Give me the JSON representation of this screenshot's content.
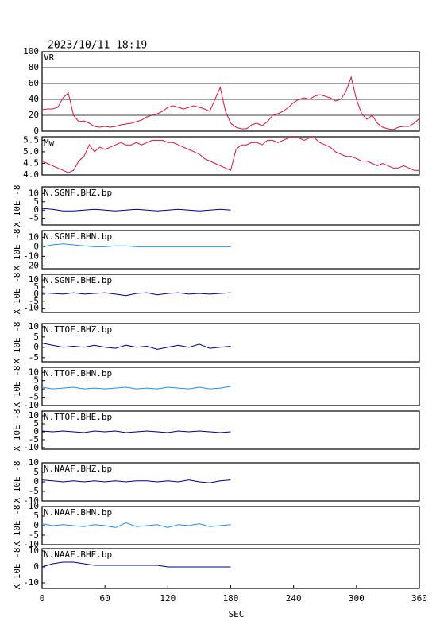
{
  "chart_data": [
    {
      "type": "line",
      "title": "2023/10/11  18:19",
      "label": "VR",
      "color": "#dc143c",
      "grid": true,
      "xlim": [
        0,
        360
      ],
      "ylim": [
        0,
        100
      ],
      "yticks": [
        0,
        20,
        40,
        60,
        80,
        100
      ],
      "x": [
        0,
        5,
        10,
        15,
        20,
        25,
        30,
        35,
        40,
        45,
        50,
        55,
        60,
        65,
        70,
        75,
        80,
        85,
        90,
        95,
        100,
        105,
        110,
        115,
        120,
        125,
        130,
        135,
        140,
        145,
        150,
        155,
        160,
        165,
        170,
        175,
        180,
        185,
        190,
        195,
        200,
        205,
        210,
        215,
        220,
        225,
        230,
        235,
        240,
        245,
        250,
        255,
        260,
        265,
        270,
        275,
        280,
        285,
        290,
        295,
        300,
        305,
        310,
        315,
        320,
        325,
        330,
        335,
        340,
        345,
        350,
        355,
        360
      ],
      "values": [
        27,
        28,
        28,
        30,
        42,
        48,
        20,
        12,
        13,
        10,
        6,
        5,
        6,
        5,
        6,
        8,
        9,
        10,
        12,
        14,
        18,
        20,
        22,
        25,
        30,
        32,
        30,
        28,
        30,
        32,
        30,
        28,
        25,
        40,
        55,
        25,
        10,
        5,
        3,
        3,
        8,
        10,
        7,
        12,
        20,
        22,
        25,
        30,
        36,
        40,
        42,
        40,
        44,
        46,
        44,
        42,
        38,
        40,
        50,
        68,
        40,
        22,
        15,
        20,
        10,
        5,
        3,
        2,
        5,
        6,
        6,
        10,
        16
      ]
    },
    {
      "type": "line",
      "label": "Mw",
      "color": "#dc143c",
      "grid": false,
      "xlim": [
        0,
        360
      ],
      "ylim": [
        4.0,
        5.65
      ],
      "yticks": [
        {
          "value": 4,
          "label": "4.0"
        },
        4.5,
        {
          "value": 5,
          "label": "5.0"
        },
        5.5
      ],
      "x": [
        0,
        5,
        10,
        15,
        20,
        25,
        30,
        35,
        40,
        45,
        50,
        55,
        60,
        65,
        70,
        75,
        80,
        85,
        90,
        95,
        100,
        105,
        110,
        115,
        120,
        125,
        130,
        135,
        140,
        145,
        150,
        155,
        160,
        165,
        170,
        175,
        180,
        185,
        190,
        195,
        200,
        205,
        210,
        215,
        220,
        225,
        230,
        235,
        240,
        245,
        250,
        255,
        260,
        265,
        270,
        275,
        280,
        285,
        290,
        295,
        300,
        305,
        310,
        315,
        320,
        325,
        330,
        335,
        340,
        345,
        350,
        355,
        360
      ],
      "values": [
        4.6,
        4.5,
        4.4,
        4.3,
        4.2,
        4.1,
        4.2,
        4.6,
        4.8,
        5.3,
        5.0,
        5.2,
        5.1,
        5.2,
        5.3,
        5.4,
        5.3,
        5.3,
        5.4,
        5.3,
        5.4,
        5.5,
        5.5,
        5.5,
        5.4,
        5.4,
        5.3,
        5.2,
        5.1,
        5.0,
        4.9,
        4.7,
        4.6,
        4.5,
        4.4,
        4.3,
        4.2,
        5.1,
        5.3,
        5.3,
        5.4,
        5.4,
        5.3,
        5.5,
        5.5,
        5.4,
        5.5,
        5.6,
        5.6,
        5.6,
        5.5,
        5.6,
        5.6,
        5.4,
        5.3,
        5.2,
        5.0,
        4.9,
        4.8,
        4.8,
        4.7,
        4.6,
        4.6,
        4.5,
        4.4,
        4.5,
        4.4,
        4.3,
        4.3,
        4.4,
        4.3,
        4.2,
        4.2
      ]
    },
    {
      "type": "line",
      "label": "N.SGNF.BHZ.bp",
      "ylabel": "X 10E -8",
      "color": "#00008b",
      "xlim": [
        0,
        360
      ],
      "ylim": [
        -9,
        14
      ],
      "yticks": [
        10,
        5,
        0,
        -5
      ],
      "x": [
        0,
        10,
        20,
        30,
        40,
        50,
        60,
        70,
        80,
        90,
        100,
        110,
        120,
        130,
        140,
        150,
        160,
        170,
        180
      ],
      "values": [
        1,
        0.5,
        -0.5,
        -0.5,
        0,
        0.5,
        0,
        -0.5,
        0,
        0.5,
        0,
        -0.5,
        0,
        0.5,
        0,
        -0.5,
        0,
        0.5,
        0
      ]
    },
    {
      "type": "line",
      "label": "N.SGNF.BHN.bp",
      "ylabel": "X 10E -8",
      "color": "#1e90ff",
      "xlim": [
        0,
        360
      ],
      "ylim": [
        -23,
        17
      ],
      "yticks": [
        10,
        0,
        -10,
        -20
      ],
      "x": [
        0,
        10,
        20,
        30,
        40,
        50,
        60,
        70,
        80,
        90,
        100,
        110,
        120,
        130,
        140,
        150,
        160,
        170,
        180
      ],
      "values": [
        0,
        2,
        3,
        2,
        1,
        0,
        0,
        1,
        1,
        0,
        0,
        0,
        0,
        0,
        0,
        0,
        0,
        0,
        0
      ]
    },
    {
      "type": "line",
      "label": "N.SGNF.BHE.bp",
      "ylabel": "X 10E -8",
      "color": "#00008b",
      "xlim": [
        0,
        360
      ],
      "ylim": [
        -13,
        14
      ],
      "yticks": [
        10,
        5,
        0,
        -5,
        -10
      ],
      "x": [
        0,
        10,
        20,
        30,
        40,
        50,
        60,
        70,
        80,
        90,
        100,
        110,
        120,
        130,
        140,
        150,
        160,
        170,
        180
      ],
      "values": [
        1,
        0.5,
        0,
        1,
        0,
        0.5,
        1,
        0,
        -1,
        0.5,
        1,
        -0.5,
        0.5,
        1,
        0,
        0.5,
        0,
        0.5,
        1
      ]
    },
    {
      "type": "line",
      "label": "N.TTOF.BHZ.bp",
      "ylabel": "X 10E -8",
      "color": "#00008b",
      "xlim": [
        0,
        360
      ],
      "ylim": [
        -7,
        11.5
      ],
      "yticks": [
        10,
        5,
        0,
        -5
      ],
      "x": [
        0,
        10,
        20,
        30,
        40,
        50,
        60,
        70,
        80,
        90,
        100,
        110,
        120,
        130,
        140,
        150,
        160,
        170,
        180
      ],
      "values": [
        2,
        1,
        0,
        0.5,
        0,
        1,
        0,
        -0.5,
        1,
        0,
        0.5,
        -1,
        0,
        1,
        0,
        1.5,
        -0.5,
        0,
        0.5
      ]
    },
    {
      "type": "line",
      "label": "N.TTOF.BHN.bp",
      "ylabel": "X 10E -8",
      "color": "#1e90ff",
      "xlim": [
        0,
        360
      ],
      "ylim": [
        -10,
        13
      ],
      "yticks": [
        10,
        5,
        0,
        -5,
        -10
      ],
      "x": [
        0,
        10,
        20,
        30,
        40,
        50,
        60,
        70,
        80,
        90,
        100,
        110,
        120,
        130,
        140,
        150,
        160,
        170,
        180
      ],
      "values": [
        1,
        0,
        0.5,
        1,
        0,
        0.5,
        0,
        0.5,
        1,
        0,
        0.5,
        0,
        1,
        0.5,
        0,
        1,
        0,
        0.5,
        1.5
      ]
    },
    {
      "type": "line",
      "label": "N.TTOF.BHE.bp",
      "ylabel": "X 10E -8",
      "color": "#00008b",
      "xlim": [
        0,
        360
      ],
      "ylim": [
        -11,
        13
      ],
      "yticks": [
        10,
        5,
        0,
        -5,
        -10
      ],
      "x": [
        0,
        10,
        20,
        30,
        40,
        50,
        60,
        70,
        80,
        90,
        100,
        110,
        120,
        130,
        140,
        150,
        160,
        170,
        180
      ],
      "values": [
        0.5,
        0,
        0.5,
        0,
        -0.5,
        0.5,
        0,
        0.5,
        -0.5,
        0,
        0.5,
        0,
        -0.5,
        0.5,
        0,
        0.5,
        0,
        -0.5,
        0
      ]
    },
    {
      "type": "line",
      "label": "N.NAAF.BHZ.bp",
      "ylabel": "X 10E -8",
      "color": "#00008b",
      "xlim": [
        0,
        360
      ],
      "ylim": [
        -10,
        10
      ],
      "yticks": [
        10,
        5,
        0,
        -5,
        -10
      ],
      "x": [
        0,
        10,
        20,
        30,
        40,
        50,
        60,
        70,
        80,
        90,
        100,
        110,
        120,
        130,
        140,
        150,
        160,
        170,
        180
      ],
      "values": [
        1,
        0.5,
        0,
        0.5,
        0,
        0.5,
        0,
        0.5,
        0,
        0.5,
        0.5,
        0,
        0.5,
        0,
        1,
        0,
        -0.5,
        0.5,
        1
      ]
    },
    {
      "type": "line",
      "label": "N.NAAF.BHN.bp",
      "ylabel": "X 10E -8",
      "color": "#1e90ff",
      "xlim": [
        0,
        360
      ],
      "ylim": [
        -10,
        10
      ],
      "yticks": [
        10,
        5,
        0,
        -5,
        -10
      ],
      "x": [
        0,
        10,
        20,
        30,
        40,
        50,
        60,
        70,
        80,
        90,
        100,
        110,
        120,
        130,
        140,
        150,
        160,
        170,
        180
      ],
      "values": [
        1,
        0,
        0.5,
        0,
        -0.5,
        0.5,
        0,
        -1,
        1.5,
        -0.5,
        0,
        0.5,
        -1,
        0.5,
        0,
        1,
        -0.5,
        0,
        0.5
      ]
    },
    {
      "type": "line",
      "label": "N.NAAF.BHE.bp",
      "ylabel": "X 10E -8",
      "color": "#00008b",
      "xlim": [
        0,
        360
      ],
      "ylim": [
        -13.5,
        11.5
      ],
      "yticks": [
        10,
        0,
        -10
      ],
      "x": [
        0,
        10,
        20,
        30,
        40,
        50,
        60,
        70,
        80,
        90,
        100,
        110,
        120,
        130,
        140,
        150,
        160,
        170,
        180
      ],
      "values": [
        0,
        2,
        3,
        3,
        2,
        1,
        1,
        1,
        1,
        1,
        1,
        1,
        0,
        0,
        0,
        0,
        0,
        0,
        0
      ],
      "xlabel": "SEC",
      "xticks": [
        0,
        60,
        120,
        180,
        240,
        300,
        360
      ]
    }
  ]
}
